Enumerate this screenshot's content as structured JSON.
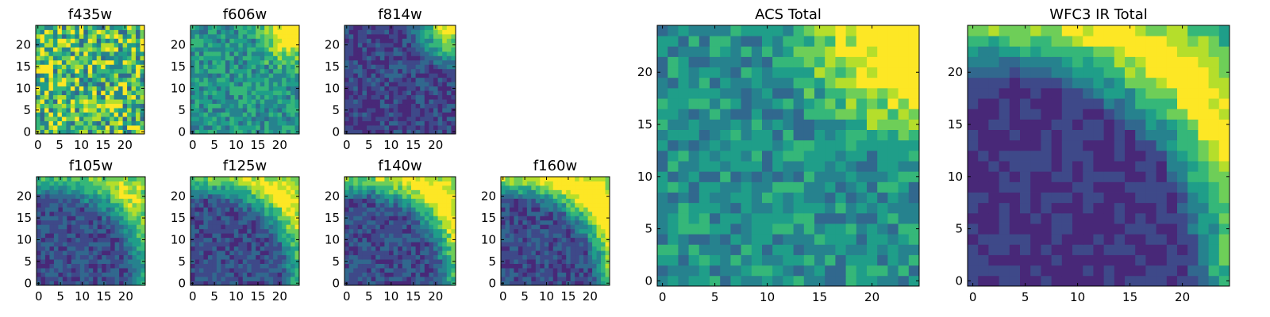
{
  "chart_data": [
    {
      "type": "heatmap",
      "title": "f435w",
      "xticks": [
        "0",
        "5",
        "10",
        "15",
        "20"
      ],
      "yticks": [
        "0",
        "5",
        "10",
        "15",
        "20"
      ],
      "xlim": [
        -0.5,
        24.5
      ],
      "ylim": [
        -0.5,
        24.5
      ],
      "grid": false
    },
    {
      "type": "heatmap",
      "title": "f606w",
      "xticks": [
        "0",
        "5",
        "10",
        "15",
        "20"
      ],
      "yticks": [
        "0",
        "5",
        "10",
        "15",
        "20"
      ],
      "xlim": [
        -0.5,
        24.5
      ],
      "ylim": [
        -0.5,
        24.5
      ],
      "grid": false
    },
    {
      "type": "heatmap",
      "title": "f814w",
      "xticks": [
        "0",
        "5",
        "10",
        "15",
        "20"
      ],
      "yticks": [
        "0",
        "5",
        "10",
        "15",
        "20"
      ],
      "xlim": [
        -0.5,
        24.5
      ],
      "ylim": [
        -0.5,
        24.5
      ],
      "grid": false
    },
    {
      "type": "heatmap",
      "title": "f105w",
      "xticks": [
        "0",
        "5",
        "10",
        "15",
        "20"
      ],
      "yticks": [
        "0",
        "5",
        "10",
        "15",
        "20"
      ],
      "xlim": [
        -0.5,
        24.5
      ],
      "ylim": [
        -0.5,
        24.5
      ],
      "grid": false
    },
    {
      "type": "heatmap",
      "title": "f125w",
      "xticks": [
        "0",
        "5",
        "10",
        "15",
        "20"
      ],
      "yticks": [
        "0",
        "5",
        "10",
        "15",
        "20"
      ],
      "xlim": [
        -0.5,
        24.5
      ],
      "ylim": [
        -0.5,
        24.5
      ],
      "grid": false
    },
    {
      "type": "heatmap",
      "title": "f140w",
      "xticks": [
        "0",
        "5",
        "10",
        "15",
        "20"
      ],
      "yticks": [
        "0",
        "5",
        "10",
        "15",
        "20"
      ],
      "xlim": [
        -0.5,
        24.5
      ],
      "ylim": [
        -0.5,
        24.5
      ],
      "grid": false
    },
    {
      "type": "heatmap",
      "title": "f160w",
      "xticks": [
        "0",
        "5",
        "10",
        "15",
        "20"
      ],
      "yticks": [
        "0",
        "5",
        "10",
        "15",
        "20"
      ],
      "xlim": [
        -0.5,
        24.5
      ],
      "ylim": [
        -0.5,
        24.5
      ],
      "grid": false
    },
    {
      "type": "heatmap",
      "title": "ACS Total",
      "xticks": [
        "0",
        "5",
        "10",
        "15",
        "20"
      ],
      "yticks": [
        "0",
        "5",
        "10",
        "15",
        "20"
      ],
      "xlim": [
        -0.5,
        24.5
      ],
      "ylim": [
        -0.5,
        24.5
      ],
      "grid": false
    },
    {
      "type": "heatmap",
      "title": "WFC3 IR Total",
      "xticks": [
        "0",
        "5",
        "10",
        "15",
        "20"
      ],
      "yticks": [
        "0",
        "5",
        "10",
        "15",
        "20"
      ],
      "xlim": [
        -0.5,
        24.5
      ],
      "ylim": [
        -0.5,
        24.5
      ],
      "grid": false
    }
  ],
  "colormap": [
    "#440154",
    "#482878",
    "#3e4989",
    "#31688e",
    "#26828e",
    "#1f9e89",
    "#35b779",
    "#6ece58",
    "#b5de2b",
    "#fde725"
  ]
}
